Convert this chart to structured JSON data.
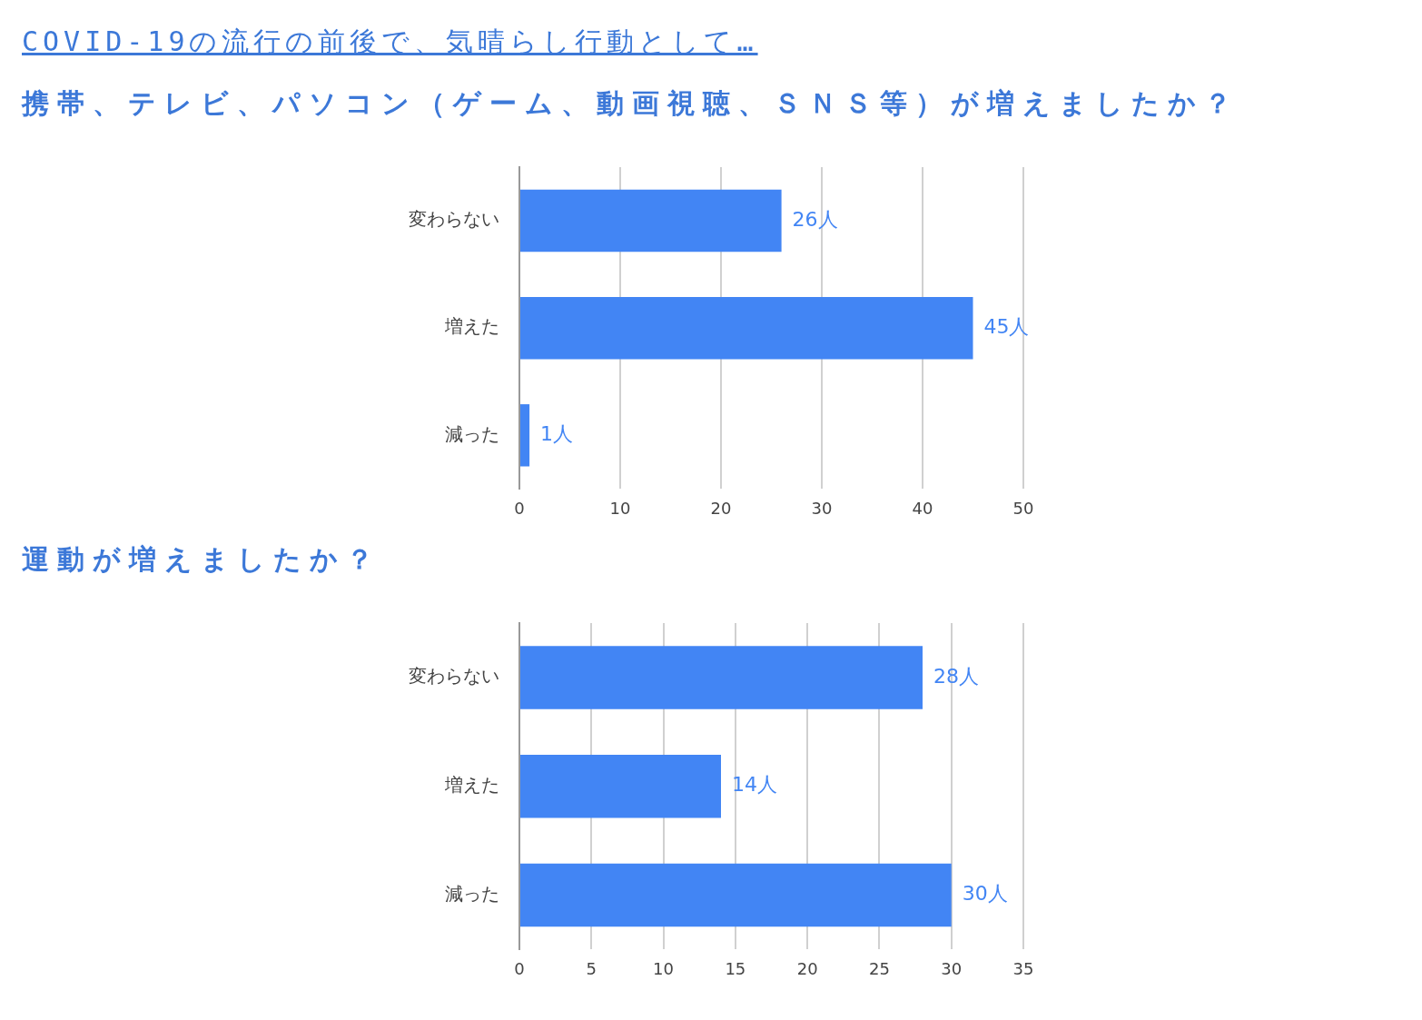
{
  "chart_data": [
    {
      "type": "bar",
      "orientation": "horizontal",
      "title": "COVID-19の流行の前後で、気晴らし行動として…",
      "subtitle": "携帯、テレビ、パソコン（ゲーム、動画視聴、ＳＮＳ等）が増えましたか？",
      "categories": [
        "変わらない",
        "増えた",
        "減った"
      ],
      "values": [
        26,
        45,
        1
      ],
      "value_labels": [
        "26人",
        "45人",
        "1人"
      ],
      "color": "#4285f4",
      "xlim": [
        0,
        50
      ],
      "xticks": [
        0,
        10,
        20,
        30,
        40,
        50
      ],
      "grid": "x",
      "legend": false
    },
    {
      "type": "bar",
      "orientation": "horizontal",
      "title": "運動が増えましたか？",
      "categories": [
        "変わらない",
        "増えた",
        "減った"
      ],
      "values": [
        28,
        14,
        30
      ],
      "value_labels": [
        "28人",
        "14人",
        "30人"
      ],
      "color": "#4285f4",
      "xlim": [
        0,
        35
      ],
      "xticks": [
        0,
        5,
        10,
        15,
        20,
        25,
        30,
        35
      ],
      "grid": "x",
      "legend": false
    }
  ]
}
